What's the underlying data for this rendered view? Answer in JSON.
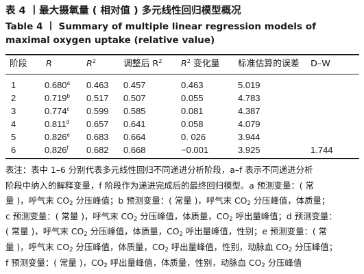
{
  "title_cn": "表 4 丨最大摄氧量 ( 相对值 ) 多元线性回归模型概况",
  "title_en": "Table 4 丨 Summary of multiple linear regression models of maximal oxygen uptake (relative value)",
  "headers": {
    "stage": "阶段",
    "r": "R",
    "r2": "R",
    "r2_sup": "2",
    "adj": "调整后 R",
    "adj_sup": "2",
    "r2change": "R",
    "r2change_sup": "2",
    "r2change_suffix": " 变化量",
    "se": "标准估算的误差",
    "dw": "D–W"
  },
  "rows": [
    {
      "stage": "1",
      "r": "0.680",
      "sup": "a",
      "r2": "0.463",
      "adj": "0.457",
      "chg": "0.463",
      "se": "5.019",
      "dw": ""
    },
    {
      "stage": "2",
      "r": "0.719",
      "sup": "b",
      "r2": "0.517",
      "adj": "0.507",
      "chg": "0.055",
      "se": "4.783",
      "dw": ""
    },
    {
      "stage": "3",
      "r": "0.774",
      "sup": "c",
      "r2": "0.599",
      "adj": "0.585",
      "chg": "0.081",
      "se": "4.387",
      "dw": ""
    },
    {
      "stage": "4",
      "r": "0.811",
      "sup": "d",
      "r2": "0.657",
      "adj": "0.641",
      "chg": "0.058",
      "se": "4.079",
      "dw": ""
    },
    {
      "stage": "5",
      "r": "0.826",
      "sup": "e",
      "r2": "0.683",
      "adj": "0.664",
      "chg": "0. 026",
      "se": "3.944",
      "dw": ""
    },
    {
      "stage": "6",
      "r": "0.826",
      "sup": "f",
      "r2": "0.682",
      "adj": "0.668",
      "chg": "−0.001",
      "se": "3.925",
      "dw": "1.744"
    }
  ],
  "notes": [
    {
      "a": "表注：表中 1–6 分别代表多元线性回归不同递进分析阶段，a–f 表示不同递进分析",
      "sub": "",
      "b": "",
      "sub2": "",
      "c": "",
      "sub3": "",
      "d": ""
    },
    {
      "a": "阶段中纳入的解释变量，f 阶段作为递进完成后的最终回归模型。a 预测变量：( 常",
      "sub": "",
      "b": "",
      "sub2": "",
      "c": "",
      "sub3": "",
      "d": ""
    },
    {
      "a": "量 )，呼气末 CO",
      "sub": "2",
      "b": " 分压峰值；b 预测变量：( 常量 )，呼气末 CO",
      "sub2": "2",
      "c": " 分压峰值，体质量；",
      "sub3": "",
      "d": ""
    },
    {
      "a": "c 预测变量：( 常量 )，呼气末 CO",
      "sub": "2",
      "b": " 分压峰值，体质量，CO",
      "sub2": "2",
      "c": " 呼出量峰值；d 预测变量：",
      "sub3": "",
      "d": ""
    },
    {
      "a": "( 常量 )，呼气末 CO",
      "sub": "2",
      "b": " 分压峰值，体质量，CO",
      "sub2": "2",
      "c": " 呼出量峰值，性别；e 预测变量：( 常",
      "sub3": "",
      "d": ""
    },
    {
      "a": "量 )，呼气末 CO",
      "sub": "2",
      "b": " 分压峰值，体质量，CO",
      "sub2": "2",
      "c": " 呼出量峰值，性别，动脉血 CO",
      "sub3": "2",
      "d": " 分压峰值；"
    },
    {
      "a": "f 预测变量：( 常量 )，CO",
      "sub": "2",
      "b": " 呼出量峰值，体质量，性别，动脉血 CO",
      "sub2": "2",
      "c": " 分压峰值",
      "sub3": "",
      "d": ""
    }
  ]
}
